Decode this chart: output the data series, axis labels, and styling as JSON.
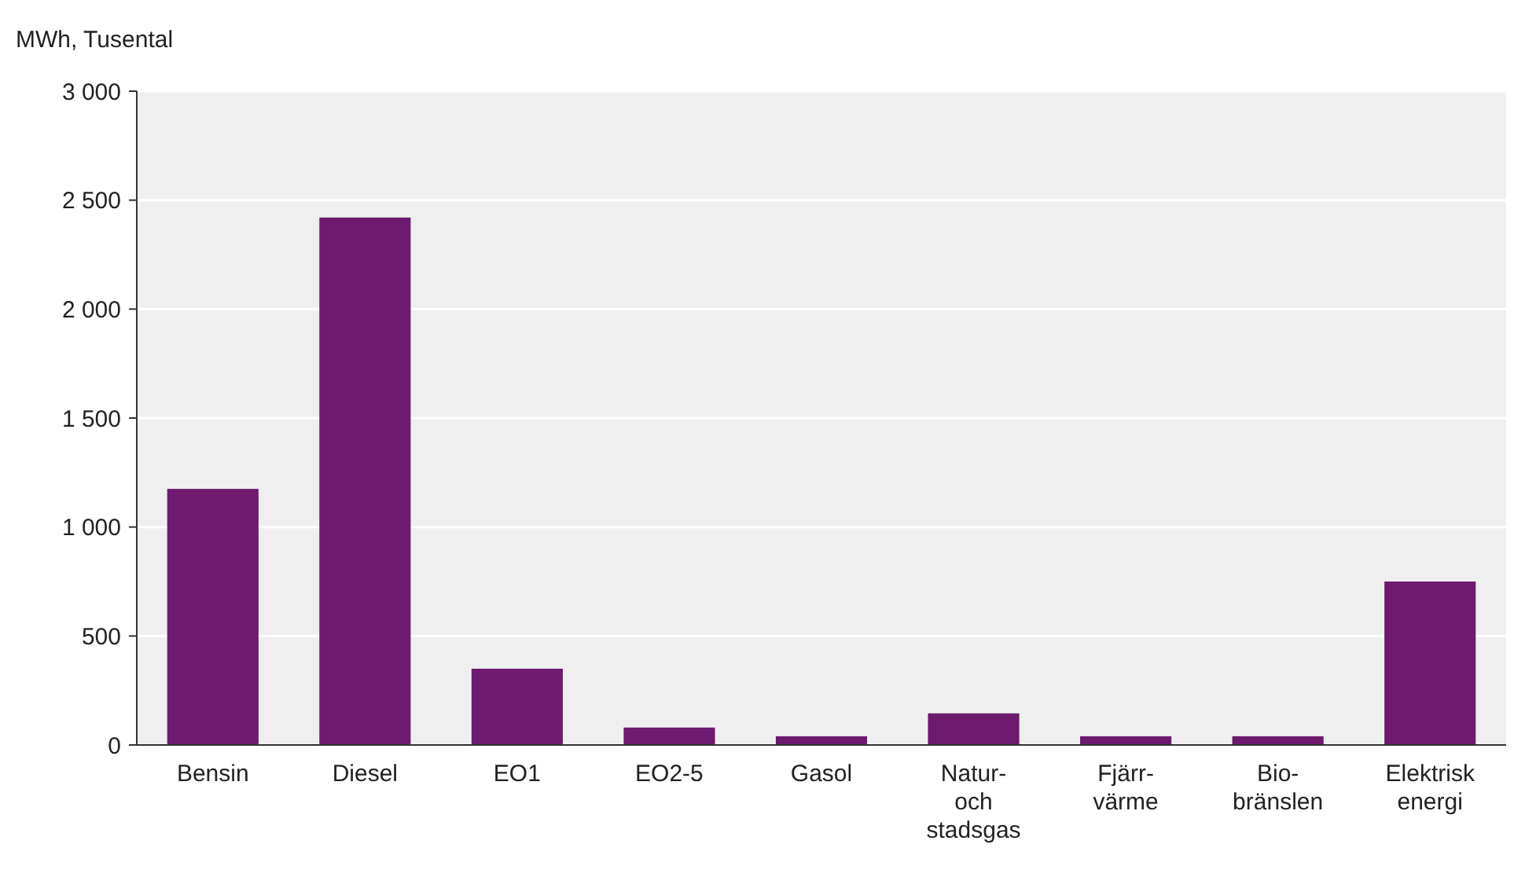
{
  "chart_data": {
    "type": "bar",
    "ylabel": "MWh, Tusental",
    "categories": [
      "Bensin",
      "Diesel",
      "EO1",
      "EO2-5",
      "Gasol",
      "Natur-\noch\nstadsgas",
      "Fjärr-\nvärme",
      "Bio-\nbränslen",
      "Elektrisk\nenergi"
    ],
    "values": [
      1175,
      2420,
      350,
      80,
      40,
      145,
      40,
      40,
      750
    ],
    "color": "#6d1a6f",
    "ylim": [
      0,
      3000
    ],
    "yticks": [
      0,
      500,
      {
        "value": 1000,
        "label": "1 000"
      },
      {
        "value": 1500,
        "label": "1 500"
      },
      {
        "value": 2000,
        "label": "2 000"
      },
      {
        "value": 2500,
        "label": "2 500"
      },
      {
        "value": 3000,
        "label": "3 000"
      }
    ],
    "grid": "y"
  }
}
